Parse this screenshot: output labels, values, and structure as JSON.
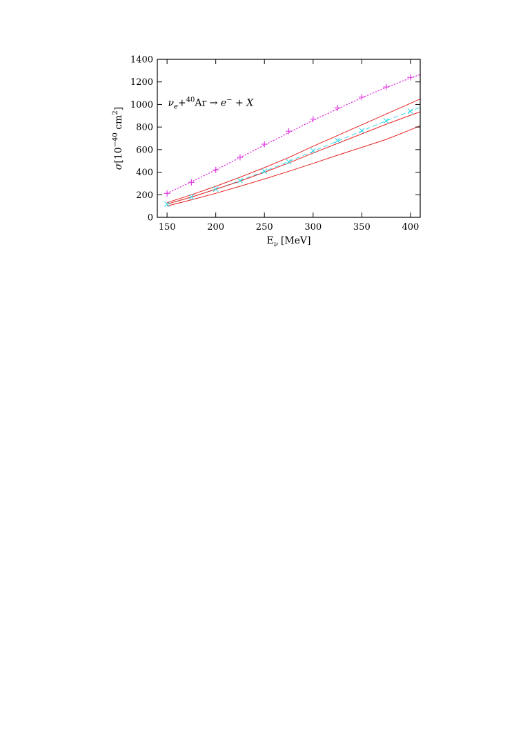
{
  "chart_data": {
    "type": "line",
    "xlabel_main": "E",
    "xlabel_sub": "ν",
    "xlabel_unit": "[MeV]",
    "ylabel_main": "σ",
    "ylabel_unit_open": "[10",
    "ylabel_exp": "−40",
    "ylabel_unit_mid": " cm",
    "ylabel_unit_sq": "2",
    "ylabel_unit_close": "]",
    "annotation": {
      "nu": "ν",
      "nu_sub": "e",
      "plus": "+",
      "mass": "40",
      "ar": "Ar",
      "arrow": " → ",
      "e": "e",
      "e_sup": "−",
      "rest": " + X"
    },
    "xlim": [
      140,
      410
    ],
    "ylim": [
      0,
      1400
    ],
    "x_ticks": [
      150,
      200,
      250,
      300,
      350,
      400
    ],
    "y_ticks": [
      0,
      200,
      400,
      600,
      800,
      1000,
      1200,
      1400
    ],
    "grid": false,
    "series": [
      {
        "style": "dotted-points-plus",
        "color": "#e030e0",
        "x": [
          150,
          175,
          200,
          225,
          250,
          275,
          300,
          325,
          350,
          375,
          400
        ],
        "y": [
          212,
          310,
          420,
          532,
          648,
          763,
          870,
          970,
          1065,
          1155,
          1240
        ],
        "curve_x": [
          150,
          175,
          200,
          225,
          250,
          275,
          300,
          325,
          350,
          375,
          400,
          410
        ],
        "curve_y": [
          212,
          315,
          420,
          530,
          640,
          750,
          860,
          960,
          1060,
          1150,
          1235,
          1265
        ]
      },
      {
        "style": "dashed-points-x",
        "color": "#30d8e8",
        "x": [
          150,
          175,
          200,
          225,
          250,
          275,
          300,
          325,
          350,
          375,
          400
        ],
        "y": [
          115,
          180,
          250,
          325,
          408,
          492,
          590,
          680,
          768,
          855,
          940
        ],
        "curve_x": [
          150,
          175,
          200,
          225,
          250,
          275,
          300,
          325,
          350,
          375,
          400,
          410
        ],
        "curve_y": [
          115,
          180,
          250,
          325,
          408,
          495,
          585,
          675,
          765,
          855,
          940,
          975
        ]
      },
      {
        "style": "solid",
        "color": "#e82020",
        "x": [
          150,
          175,
          200,
          225,
          250,
          275,
          300,
          325,
          350,
          375,
          400,
          410
        ],
        "y": [
          130,
          200,
          275,
          355,
          440,
          530,
          630,
          725,
          820,
          915,
          1010,
          1050
        ]
      },
      {
        "style": "solid",
        "color": "#e82020",
        "x": [
          150,
          175,
          200,
          225,
          250,
          275,
          300,
          325,
          350,
          375,
          400,
          410
        ],
        "y": [
          118,
          180,
          248,
          320,
          400,
          482,
          570,
          655,
          740,
          825,
          905,
          935
        ]
      },
      {
        "style": "solid",
        "color": "#e82020",
        "x": [
          150,
          175,
          200,
          225,
          250,
          275,
          300,
          325,
          350,
          375,
          400,
          410
        ],
        "y": [
          100,
          155,
          213,
          275,
          340,
          408,
          478,
          550,
          620,
          690,
          775,
          812
        ]
      }
    ]
  }
}
